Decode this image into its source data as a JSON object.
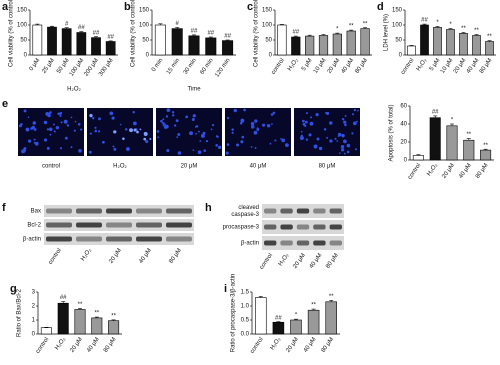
{
  "chart_data": [
    {
      "type": "bar",
      "panel": "a",
      "y_label": "Cell viability (% of control)",
      "x_label": "H₂O₂",
      "categories": [
        "0 μM",
        "25 μM",
        "50 μM",
        "100 μM",
        "200 μM",
        "300 μM"
      ],
      "values": [
        100,
        93,
        88,
        75,
        58,
        45
      ],
      "errors": [
        3,
        3,
        3,
        3,
        3,
        2
      ],
      "annotations": [
        null,
        null,
        "#",
        "##",
        "##",
        "##"
      ],
      "colors": [
        "#ffffff",
        "#111111",
        "#111111",
        "#111111",
        "#111111",
        "#111111"
      ],
      "ylim": [
        0,
        150
      ],
      "yticks": [
        0,
        50,
        100,
        150
      ]
    },
    {
      "type": "bar",
      "panel": "b",
      "y_label": "Cell viability (% of control)",
      "x_label": "Time",
      "categories": [
        "0 min",
        "15 min",
        "30 min",
        "60 min",
        "120 min"
      ],
      "values": [
        100,
        88,
        64,
        57,
        48
      ],
      "errors": [
        4,
        4,
        3,
        3,
        2
      ],
      "annotations": [
        null,
        "#",
        "##",
        "##",
        "##"
      ],
      "colors": [
        "#ffffff",
        "#111111",
        "#111111",
        "#111111",
        "#111111"
      ],
      "ylim": [
        0,
        150
      ],
      "yticks": [
        0,
        50,
        100,
        150
      ]
    },
    {
      "type": "bar",
      "panel": "c",
      "y_label": "Cell viability (% of control)",
      "categories": [
        "control",
        "H₂O₂",
        "5 μM",
        "10 μM",
        "20 μM",
        "40 μM",
        "80 μM"
      ],
      "values": [
        100,
        60,
        63,
        65,
        70,
        80,
        88
      ],
      "errors": [
        2,
        3,
        3,
        3,
        3,
        3,
        3
      ],
      "annotations": [
        null,
        "##",
        null,
        null,
        "*",
        "**",
        "**"
      ],
      "colors": [
        "#ffffff",
        "#111111",
        "#999999",
        "#999999",
        "#999999",
        "#999999",
        "#999999"
      ],
      "ylim": [
        0,
        150
      ],
      "yticks": [
        0,
        50,
        100,
        150
      ]
    },
    {
      "type": "bar",
      "panel": "d",
      "y_label": "LDH level (%)",
      "categories": [
        "control",
        "H₂O₂",
        "5 μM",
        "10 μM",
        "20 μM",
        "40 μM",
        "80 μM"
      ],
      "values": [
        30,
        100,
        92,
        85,
        72,
        65,
        45
      ],
      "errors": [
        2,
        3,
        3,
        3,
        3,
        3,
        3
      ],
      "annotations": [
        null,
        "##",
        "*",
        "*",
        "**",
        "**",
        "**"
      ],
      "colors": [
        "#ffffff",
        "#111111",
        "#999999",
        "#999999",
        "#999999",
        "#999999",
        "#999999"
      ],
      "ylim": [
        0,
        150
      ],
      "yticks": [
        0,
        50,
        100,
        150
      ]
    },
    {
      "type": "bar",
      "y_label": "Apoptosis (% of total)",
      "categories": [
        "control",
        "H₂O₂",
        "20 μM",
        "40 μM",
        "80 μM"
      ],
      "values": [
        5,
        47,
        38,
        22,
        11
      ],
      "errors": [
        1,
        2,
        2,
        2,
        1
      ],
      "annotations": [
        null,
        "##",
        "*",
        "**",
        "**"
      ],
      "colors": [
        "#ffffff",
        "#111111",
        "#999999",
        "#999999",
        "#999999"
      ],
      "ylim": [
        0,
        60
      ],
      "yticks": [
        0,
        20,
        40,
        60
      ]
    },
    {
      "type": "bar",
      "panel": "g",
      "y_label": "Ratio of Bax/Bcl-2",
      "categories": [
        "control",
        "H₂O₂",
        "20 μM",
        "40 μM",
        "80 μM"
      ],
      "values": [
        0.45,
        2.2,
        1.75,
        1.15,
        0.95
      ],
      "errors": [
        0.03,
        0.12,
        0.08,
        0.06,
        0.06
      ],
      "annotations": [
        null,
        "##",
        "**",
        "**",
        "**"
      ],
      "colors": [
        "#ffffff",
        "#111111",
        "#999999",
        "#999999",
        "#999999"
      ],
      "ylim": [
        0,
        3
      ],
      "yticks": [
        0,
        1,
        2,
        3
      ]
    },
    {
      "type": "bar",
      "panel": "i",
      "y_label": "Ratio of procaspase-3/β-actin",
      "categories": [
        "control",
        "H₂O₂",
        "20 μM",
        "40 μM",
        "80 μM"
      ],
      "values": [
        1.3,
        0.42,
        0.5,
        0.85,
        1.15
      ],
      "errors": [
        0.04,
        0.02,
        0.03,
        0.04,
        0.05
      ],
      "annotations": [
        null,
        "##",
        "*",
        "**",
        "**"
      ],
      "colors": [
        "#ffffff",
        "#111111",
        "#999999",
        "#999999",
        "#999999"
      ],
      "ylim": [
        0,
        1.5
      ],
      "yticks": [
        {
          "value": 0,
          "label": "0.0"
        },
        0.5,
        {
          "value": 1,
          "label": "1.0"
        },
        1.5
      ]
    }
  ],
  "figure": {
    "e": {
      "panel": "e",
      "images": [
        "control",
        "H₂O₂",
        "20 μM",
        "40 μM",
        "80 μM"
      ]
    },
    "f": {
      "panel": "f",
      "rows": [
        "Bax",
        "Bcl-2",
        "β-actin"
      ],
      "lanes": [
        "control",
        "H₂O₂",
        "20 μM",
        "40 μM",
        "80 μM"
      ]
    },
    "h": {
      "panel": "h",
      "rows": [
        [
          "cleaved",
          "caspase-3"
        ],
        [
          "procaspase-3"
        ],
        [
          "β-actin"
        ]
      ],
      "lanes": [
        "control",
        "H₂O₂",
        "20 μM",
        "40 μM",
        "80 μM"
      ]
    }
  }
}
